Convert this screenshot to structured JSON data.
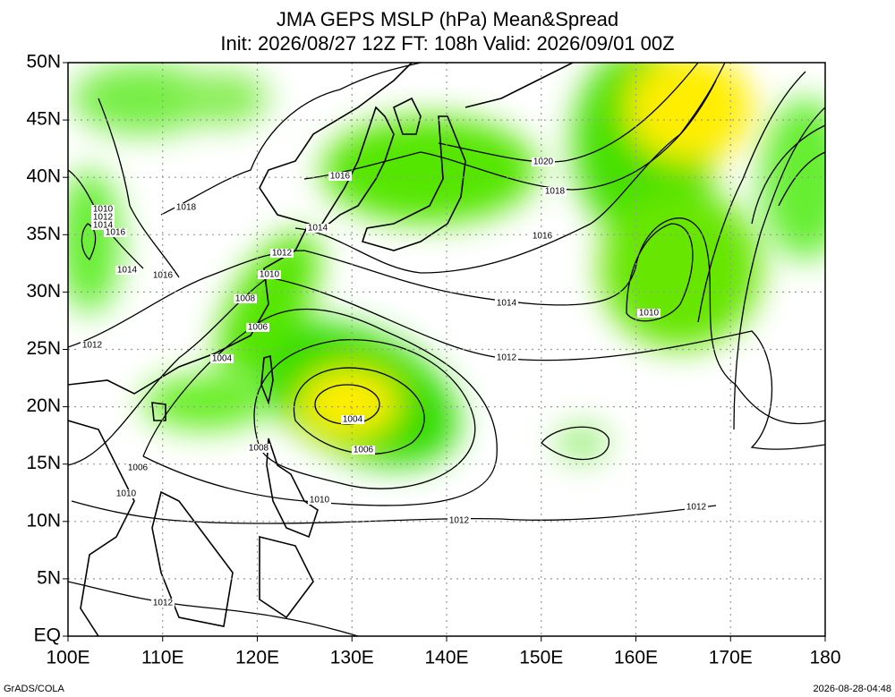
{
  "header": {
    "title": "JMA GEPS MSLP (hPa) Mean&Spread",
    "subtitle": "Init: 2026/08/27 12Z  FT: 108h  Valid: 2026/09/01 00Z"
  },
  "map": {
    "lat_labels": [
      "50N",
      "45N",
      "40N",
      "35N",
      "30N",
      "25N",
      "20N",
      "15N",
      "10N",
      "5N",
      "EQ"
    ],
    "lon_labels": [
      "100E",
      "110E",
      "120E",
      "130E",
      "140E",
      "150E",
      "160E",
      "170E",
      "180"
    ],
    "contour_labels": [
      "1020",
      "1018",
      "1016",
      "1016",
      "1014",
      "1012",
      "1010",
      "1008",
      "1006",
      "1004",
      "1018",
      "1010",
      "1012",
      "1014",
      "1016",
      "1014",
      "1016",
      "1012",
      "1014",
      "1012",
      "1010",
      "1004",
      "1006",
      "1008",
      "1006",
      "1010",
      "1010",
      "1012",
      "1012",
      "1012"
    ]
  },
  "footer": {
    "left": "GrADS/COLA",
    "right": "2026-08-28-04:48"
  }
}
